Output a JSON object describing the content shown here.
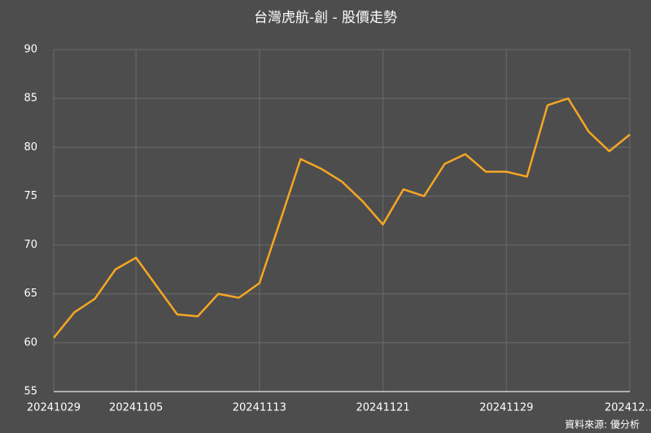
{
  "chart_data": {
    "type": "line",
    "title": "台灣虎航-創 - 股價走勢",
    "source": "資料來源: 優分析",
    "categories": [
      "20241029",
      null,
      null,
      null,
      "20241105",
      null,
      null,
      null,
      null,
      null,
      "20241113",
      null,
      null,
      null,
      null,
      null,
      "20241121",
      null,
      null,
      null,
      null,
      null,
      "20241129",
      null,
      null,
      null,
      null,
      null,
      "202412..."
    ],
    "values": [
      60.5,
      63.1,
      64.5,
      67.5,
      68.7,
      65.8,
      62.9,
      62.7,
      65.0,
      64.6,
      66.1,
      72.4,
      78.8,
      77.8,
      76.5,
      74.5,
      72.1,
      75.7,
      75.0,
      78.3,
      79.3,
      77.5,
      77.5,
      77.0,
      84.3,
      85.0,
      81.6,
      79.6,
      81.3
    ],
    "color": "#f5a623",
    "ylim": [
      55,
      90
    ],
    "yticks": [
      55,
      60,
      65,
      70,
      75,
      80,
      85,
      90
    ],
    "grid": true
  }
}
